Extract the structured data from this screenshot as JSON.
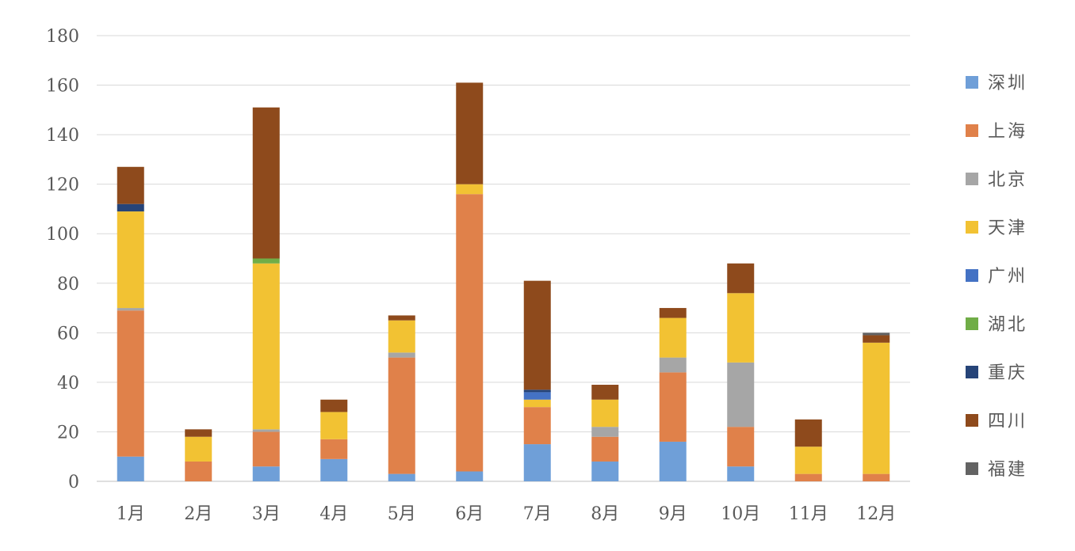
{
  "chart_data": {
    "type": "bar",
    "stacked": true,
    "title": "",
    "xlabel": "",
    "ylabel": "",
    "ylim": [
      0,
      180
    ],
    "yticks": [
      0,
      20,
      40,
      60,
      80,
      100,
      120,
      140,
      160,
      180
    ],
    "grid": true,
    "legend_position": "right",
    "categories": [
      "1月",
      "2月",
      "3月",
      "4月",
      "5月",
      "6月",
      "7月",
      "8月",
      "9月",
      "10月",
      "11月",
      "12月"
    ],
    "series": [
      {
        "name": "深圳",
        "color": "#6F9FD8",
        "values": [
          10,
          0,
          6,
          9,
          3,
          4,
          15,
          8,
          16,
          6,
          0,
          0
        ]
      },
      {
        "name": "上海",
        "color": "#E0814A",
        "values": [
          59,
          8,
          14,
          8,
          47,
          112,
          15,
          10,
          28,
          16,
          3,
          3
        ]
      },
      {
        "name": "北京",
        "color": "#A6A6A6",
        "values": [
          1,
          0,
          1,
          0,
          2,
          0,
          0,
          4,
          6,
          26,
          0,
          0
        ]
      },
      {
        "name": "天津",
        "color": "#F2C233",
        "values": [
          39,
          10,
          67,
          11,
          13,
          4,
          3,
          11,
          16,
          28,
          11,
          53
        ]
      },
      {
        "name": "广州",
        "color": "#4472C4",
        "values": [
          0,
          0,
          0,
          0,
          0,
          0,
          3,
          0,
          0,
          0,
          0,
          0
        ]
      },
      {
        "name": "湖北",
        "color": "#70AD47",
        "values": [
          0,
          0,
          2,
          0,
          0,
          0,
          0,
          0,
          0,
          0,
          0,
          0
        ]
      },
      {
        "name": "重庆",
        "color": "#264478",
        "values": [
          3,
          0,
          0,
          0,
          0,
          0,
          1,
          0,
          0,
          0,
          0,
          0
        ]
      },
      {
        "name": "四川",
        "color": "#8E4A1C",
        "values": [
          15,
          3,
          61,
          5,
          2,
          41,
          44,
          6,
          4,
          12,
          11,
          3
        ]
      },
      {
        "name": "福建",
        "color": "#636363",
        "values": [
          0,
          0,
          0,
          0,
          0,
          0,
          0,
          0,
          0,
          0,
          0,
          1
        ]
      }
    ]
  }
}
